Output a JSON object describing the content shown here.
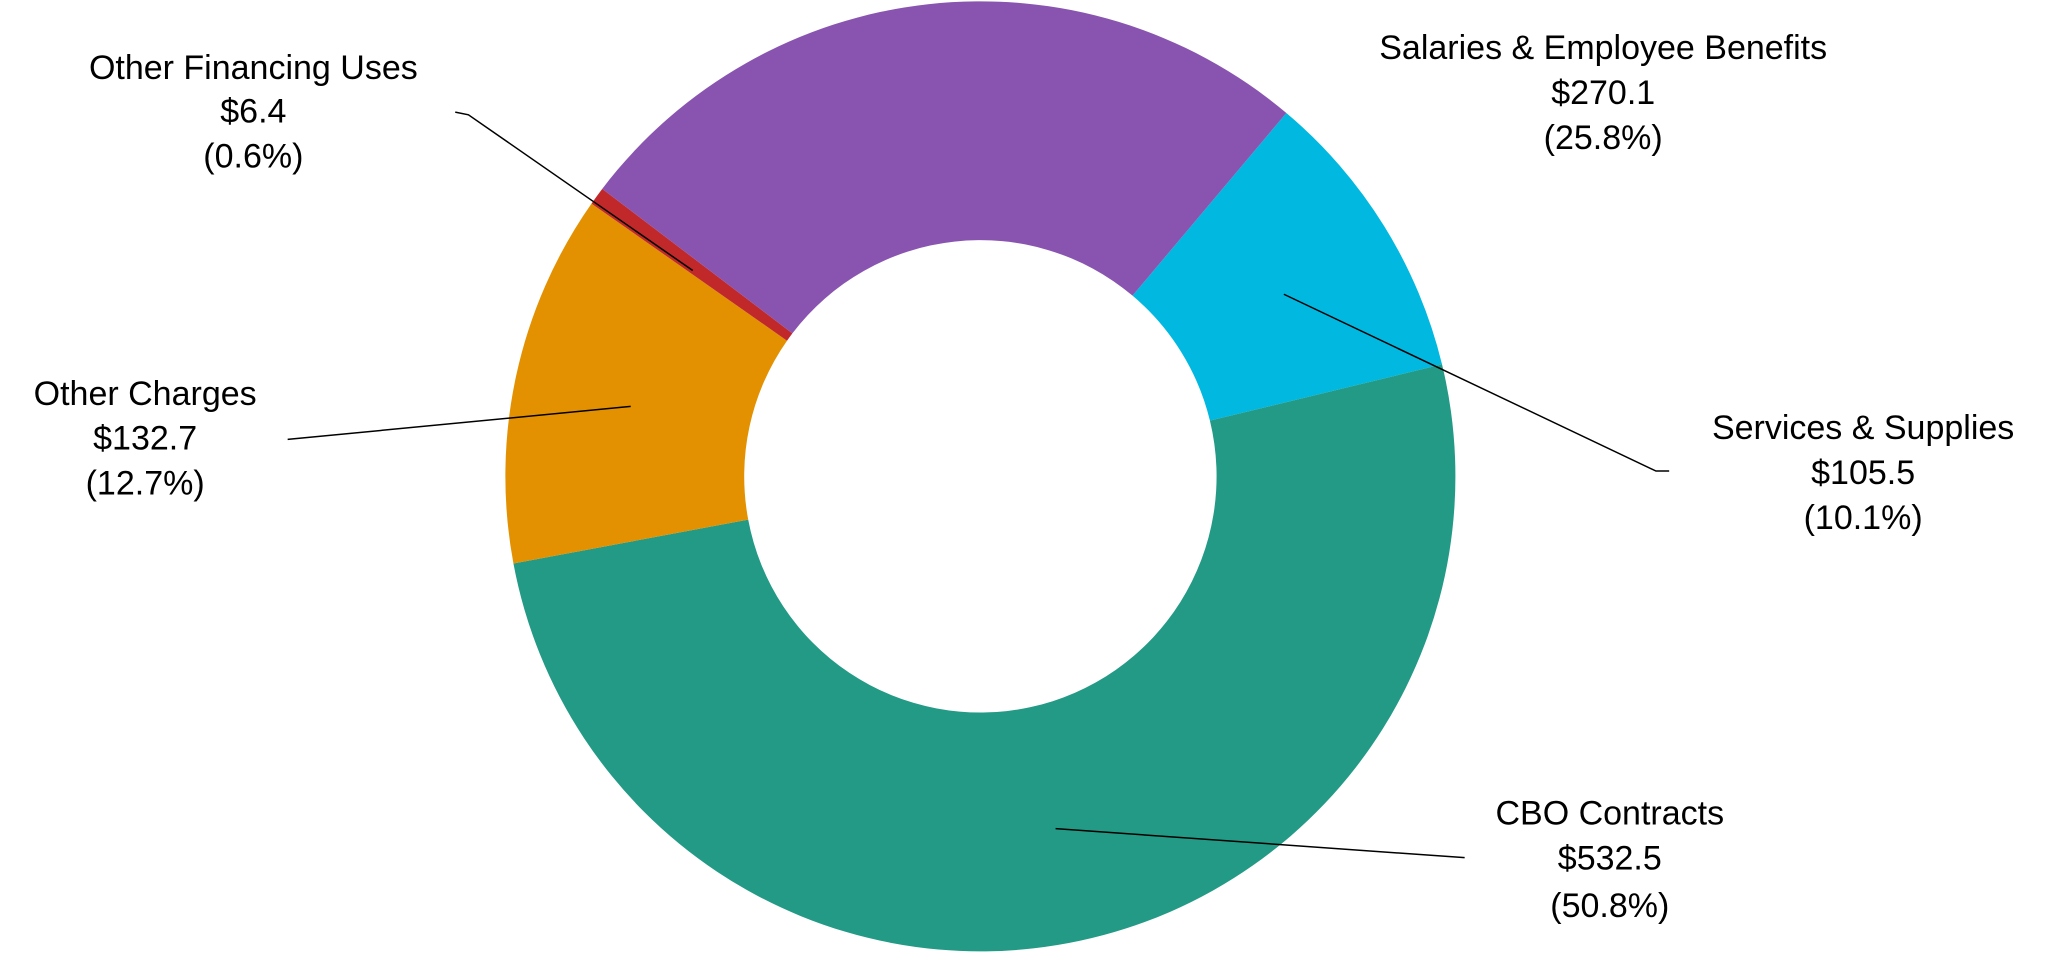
{
  "chart_data": {
    "type": "donut",
    "categories": [
      "Services & Supplies",
      "CBO Contracts",
      "Other Charges",
      "Other Financing Uses",
      "Salaries & Employee Benefits"
    ],
    "values": [
      105.5,
      532.5,
      132.7,
      6.4,
      270.1
    ],
    "value_labels": [
      "$105.5",
      "$532.5",
      "$132.7",
      "$6.4",
      "$270.1"
    ],
    "percent_labels": [
      "(10.1%)",
      "(50.8%)",
      "(12.7%)",
      "(0.6%)",
      "(25.8%)"
    ],
    "colors": [
      "#00b8e0",
      "#229a85",
      "#e39101",
      "#c0282a",
      "#8954b0"
    ]
  }
}
